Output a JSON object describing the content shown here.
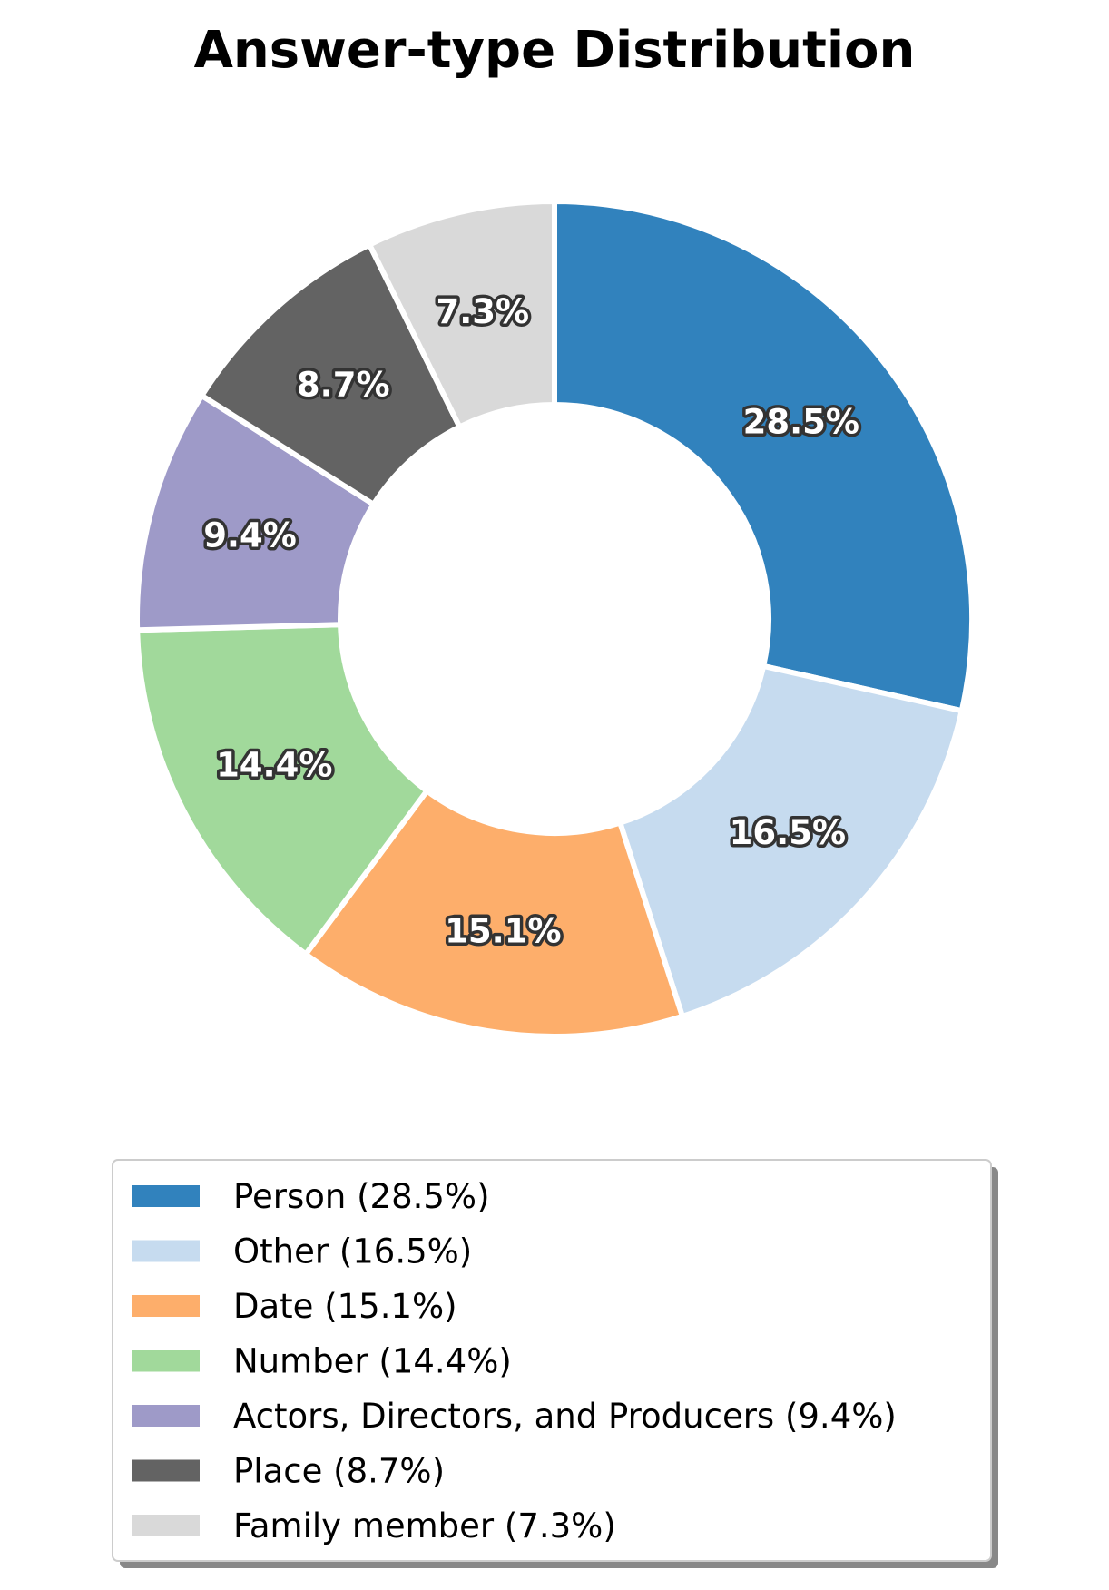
{
  "chart_data": {
    "type": "pie",
    "variant": "donut",
    "title": "Answer-type Distribution",
    "categories": [
      "Person",
      "Other",
      "Date",
      "Number",
      "Actors, Directors, and Producers",
      "Place",
      "Family member"
    ],
    "values": [
      28.5,
      16.5,
      15.1,
      14.4,
      9.4,
      8.7,
      7.3
    ],
    "slice_labels": [
      "28.5%",
      "16.5%",
      "15.1%",
      "14.4%",
      "9.4%",
      "8.7%",
      "7.3%"
    ],
    "legend_entries": [
      "Person (28.5%)",
      "Other (16.5%)",
      "Date (15.1%)",
      "Number (14.4%)",
      "Actors, Directors, and Producers (9.4%)",
      "Place (8.7%)",
      "Family member (7.3%)"
    ],
    "colors": [
      "#3182bd",
      "#c6dbef",
      "#fdae6b",
      "#a1d99b",
      "#9e9ac8",
      "#636363",
      "#d9d9d9"
    ],
    "start_angle_deg": 90,
    "direction": "clockwise",
    "legend_position": "bottom"
  }
}
